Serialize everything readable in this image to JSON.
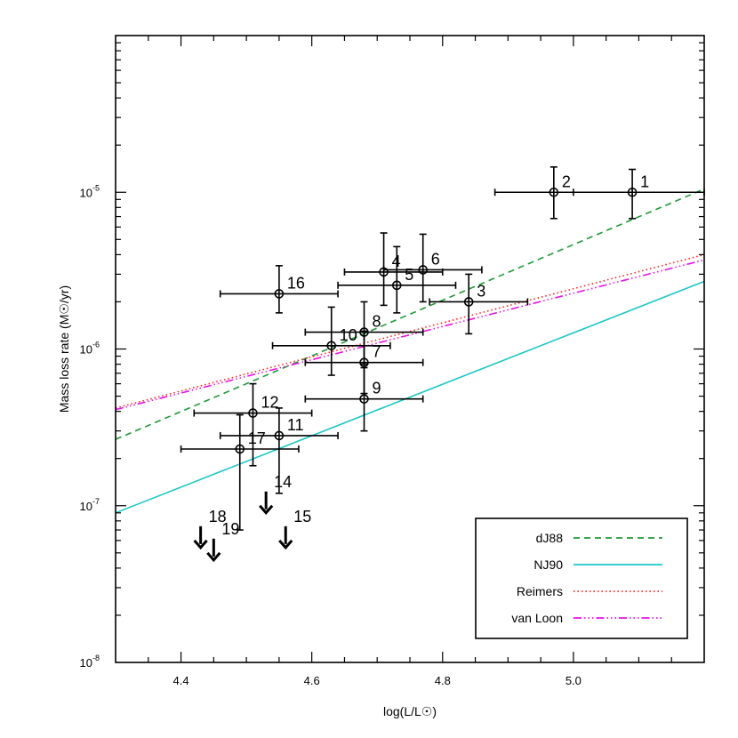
{
  "chart_data": {
    "type": "scatter",
    "xlabel": "log(L/L☉)",
    "ylabel": "Mass loss rate (M☉/yr)",
    "xlim": [
      4.3,
      5.2
    ],
    "ylim": [
      1e-08,
      0.0001
    ],
    "y_scale": "log",
    "x_ticks": [
      {
        "value": 4.4,
        "label": "4.4"
      },
      {
        "value": 4.6,
        "label": "4.6"
      },
      {
        "value": 4.8,
        "label": "4.8"
      },
      {
        "value": 5.0,
        "label": "5.0"
      }
    ],
    "y_ticks": [
      {
        "value": 1e-08,
        "label": "10",
        "exp": "-8"
      },
      {
        "value": 1e-07,
        "label": "10",
        "exp": "-7"
      },
      {
        "value": 1e-06,
        "label": "10",
        "exp": "-6"
      },
      {
        "value": 1e-05,
        "label": "10",
        "exp": "-5"
      }
    ],
    "points": [
      {
        "label": "1",
        "x": 5.09,
        "y": 1e-05,
        "xerr": [
          0.09,
          0.11
        ],
        "yerr": [
          6.8e-06,
          1.4e-05
        ]
      },
      {
        "label": "2",
        "x": 4.97,
        "y": 1e-05,
        "xerr": [
          0.09,
          0.12
        ],
        "yerr": [
          6.8e-06,
          1.45e-05
        ]
      },
      {
        "label": "3",
        "x": 4.84,
        "y": 2e-06,
        "xerr": [
          0.06,
          0.09
        ],
        "yerr": [
          1.25e-06,
          3e-06
        ]
      },
      {
        "label": "4",
        "x": 4.71,
        "y": 3.1e-06,
        "xerr": [
          0.06,
          0.09
        ],
        "yerr": [
          1.9e-06,
          5.5e-06
        ]
      },
      {
        "label": "5",
        "x": 4.73,
        "y": 2.55e-06,
        "xerr": [
          0.09,
          0.09
        ],
        "yerr": [
          1.7e-06,
          4.5e-06
        ]
      },
      {
        "label": "6",
        "x": 4.77,
        "y": 3.2e-06,
        "xerr": [
          0.06,
          0.09
        ],
        "yerr": [
          2e-06,
          5.4e-06
        ]
      },
      {
        "label": "7",
        "x": 4.68,
        "y": 8.2e-07,
        "xerr": [
          0.09,
          0.09
        ],
        "yerr": [
          5.2e-07,
          1.3e-06
        ]
      },
      {
        "label": "8",
        "x": 4.68,
        "y": 1.28e-06,
        "xerr": [
          0.09,
          0.09
        ],
        "yerr": [
          8e-07,
          2e-06
        ]
      },
      {
        "label": "9",
        "x": 4.68,
        "y": 4.8e-07,
        "xerr": [
          0.09,
          0.09
        ],
        "yerr": [
          3e-07,
          7.6e-07
        ]
      },
      {
        "label": "10",
        "x": 4.63,
        "y": 1.05e-06,
        "xerr": [
          0.09,
          0.09
        ],
        "yerr": [
          6.8e-07,
          1.85e-06
        ]
      },
      {
        "label": "11",
        "x": 4.55,
        "y": 2.8e-07,
        "xerr": [
          0.09,
          0.09
        ],
        "yerr": [
          1.2e-07,
          4.2e-07
        ]
      },
      {
        "label": "12",
        "x": 4.51,
        "y": 3.9e-07,
        "xerr": [
          0.09,
          0.09
        ],
        "yerr": [
          1.8e-07,
          6e-07
        ]
      },
      {
        "label": "16",
        "x": 4.55,
        "y": 2.25e-06,
        "xerr": [
          0.09,
          0.09
        ],
        "yerr": [
          1.7e-06,
          3.4e-06
        ]
      },
      {
        "label": "17",
        "x": 4.49,
        "y": 2.3e-07,
        "xerr": [
          0.09,
          0.09
        ],
        "yerr": [
          7e-08,
          3.8e-07
        ]
      }
    ],
    "upper_limits": [
      {
        "label": "14",
        "x": 4.53,
        "y": 1e-07
      },
      {
        "label": "15",
        "x": 4.56,
        "y": 6e-08
      },
      {
        "label": "18",
        "x": 4.43,
        "y": 6e-08
      },
      {
        "label": "19",
        "x": 4.45,
        "y": 5e-08
      }
    ],
    "series": [
      {
        "name": "dJ88",
        "color": "#1e9a36",
        "dash": "dashed",
        "x": [
          4.3,
          5.2
        ],
        "y": [
          2.65e-07,
          1.05e-05
        ]
      },
      {
        "name": "NJ90",
        "color": "#1ec6c6",
        "dash": "solid",
        "x": [
          4.3,
          5.2
        ],
        "y": [
          9e-08,
          2.7e-06
        ]
      },
      {
        "name": "Reimers",
        "color": "#ff2020",
        "dash": "dotted",
        "x": [
          4.3,
          5.2
        ],
        "y": [
          4.2e-07,
          4e-06
        ]
      },
      {
        "name": "van Loon",
        "color": "#e812e8",
        "dash": "dashdotdot",
        "x": [
          4.3,
          5.2
        ],
        "y": [
          4.1e-07,
          3.7e-06
        ]
      }
    ],
    "legend_position": "bottom-right"
  }
}
